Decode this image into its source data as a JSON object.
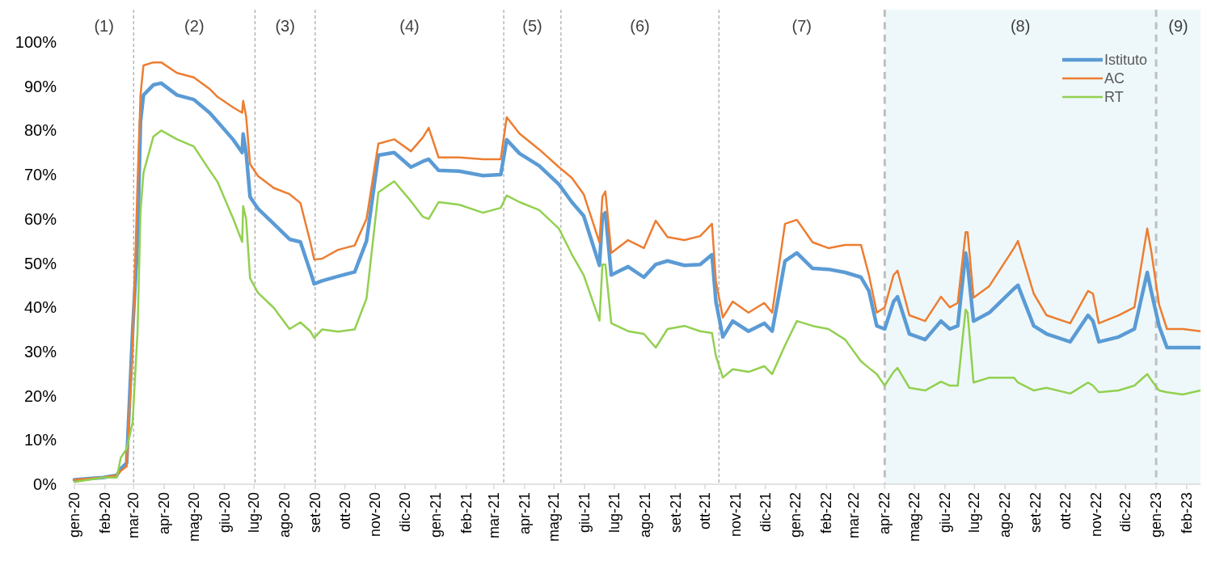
{
  "chart_data": {
    "type": "line",
    "x": [
      "2020-01-01",
      "2020-01-30",
      "2020-02-13",
      "2020-02-17",
      "2020-02-23",
      "2020-02-29",
      "2020-03-05",
      "2020-03-08",
      "2020-03-11",
      "2020-03-21",
      "2020-03-29",
      "2020-04-14",
      "2020-05-01",
      "2020-05-17",
      "2020-05-25",
      "2020-06-10",
      "2020-06-19",
      "2020-06-20",
      "2020-06-23",
      "2020-06-27",
      "2020-07-05",
      "2020-07-21",
      "2020-08-06",
      "2020-08-17",
      "2020-08-27",
      "2020-08-31",
      "2020-09-08",
      "2020-09-24",
      "2020-10-11",
      "2020-10-23",
      "2020-11-04",
      "2020-11-20",
      "2020-12-07",
      "2020-12-19",
      "2020-12-25",
      "2021-01-04",
      "2021-01-25",
      "2021-02-18",
      "2021-03-08",
      "2021-03-14",
      "2021-03-27",
      "2021-04-16",
      "2021-05-06",
      "2021-05-19",
      "2021-05-31",
      "2021-06-16",
      "2021-06-19",
      "2021-06-22",
      "2021-06-28",
      "2021-07-15",
      "2021-07-31",
      "2021-08-12",
      "2021-08-24",
      "2021-09-10",
      "2021-09-26",
      "2021-10-08",
      "2021-10-12",
      "2021-10-19",
      "2021-10-29",
      "2021-11-14",
      "2021-11-30",
      "2021-12-08",
      "2021-12-21",
      "2022-01-02",
      "2022-01-18",
      "2022-02-03",
      "2022-02-20",
      "2022-03-08",
      "2022-03-16",
      "2022-03-24",
      "2022-04-01",
      "2022-04-10",
      "2022-04-14",
      "2022-04-26",
      "2022-05-12",
      "2022-05-28",
      "2022-06-06",
      "2022-06-14",
      "2022-06-22",
      "2022-06-24",
      "2022-06-30",
      "2022-07-16",
      "2022-08-10",
      "2022-08-14",
      "2022-08-30",
      "2022-09-12",
      "2022-10-06",
      "2022-10-24",
      "2022-10-29",
      "2022-11-04",
      "2022-11-24",
      "2022-12-10",
      "2022-12-23",
      "2022-12-27",
      "2023-01-04",
      "2023-01-12",
      "2023-01-28",
      "2023-02-15"
    ],
    "series": [
      {
        "name": "Istituto",
        "color": "#5b9bd5",
        "values": [
          1,
          1.5,
          2,
          3.5,
          4.8,
          34.6,
          55,
          82,
          88,
          90.3,
          90.7,
          88,
          87,
          84,
          82,
          77.9,
          75,
          79.2,
          75,
          65,
          62.3,
          58.9,
          55.4,
          54.8,
          48.1,
          45.3,
          46,
          47,
          48,
          55,
          74.4,
          75,
          71.7,
          73,
          73.5,
          71,
          70.8,
          69.8,
          70,
          77.9,
          74.8,
          72,
          67.8,
          63.8,
          60.7,
          49.5,
          60.7,
          61.4,
          47.3,
          49.2,
          46.8,
          49.7,
          50.5,
          49.5,
          49.7,
          51.9,
          41.3,
          33.3,
          36.9,
          34.6,
          36.4,
          34.6,
          50.5,
          52.3,
          48.8,
          48.6,
          47.9,
          46.8,
          43.7,
          35.8,
          35.1,
          41.3,
          42.4,
          34,
          32.7,
          36.9,
          35.1,
          35.8,
          52.3,
          49.7,
          36.9,
          38.8,
          44.2,
          45,
          35.8,
          34,
          32.2,
          38.2,
          36.9,
          32.2,
          33.3,
          35.1,
          47.9,
          43.7,
          35.8,
          30.9,
          30.9,
          30.9
        ]
      },
      {
        "name": "AC",
        "color": "#ed7d31",
        "values": [
          1,
          1.5,
          2,
          3,
          4,
          31,
          68,
          88,
          94.7,
          95.4,
          95.4,
          93,
          92,
          89.4,
          87.6,
          85.2,
          84,
          86.7,
          83.2,
          72.4,
          69.7,
          67,
          65.6,
          63.6,
          54.8,
          50.8,
          51,
          53,
          54,
          60,
          77,
          78,
          75.3,
          78.4,
          80.6,
          73.9,
          73.9,
          73.5,
          73.5,
          83,
          79.3,
          75.7,
          71.7,
          69.3,
          65.6,
          54.7,
          65,
          66.2,
          52.3,
          55.2,
          53.4,
          59.6,
          55.9,
          55.2,
          56.1,
          58.9,
          46,
          37.7,
          41.3,
          38.8,
          41,
          38.8,
          58.9,
          59.8,
          54.7,
          53.4,
          54.1,
          54.1,
          47.3,
          38.8,
          40,
          47.3,
          48.3,
          38.2,
          36.9,
          42.4,
          40,
          41,
          57,
          57,
          42.2,
          44.8,
          53.4,
          55,
          43.1,
          38.2,
          36.4,
          43.7,
          43.1,
          36.4,
          38.2,
          40,
          57.8,
          52.8,
          40.6,
          35.1,
          35.1,
          34.6
        ]
      },
      {
        "name": "RT",
        "color": "#92d050",
        "values": [
          0.5,
          1.5,
          1.5,
          6,
          8,
          14,
          34.6,
          61.6,
          70.4,
          78.6,
          80,
          78,
          76.4,
          71,
          68.4,
          60,
          54.8,
          62.9,
          60,
          46.6,
          43.3,
          39.9,
          35.1,
          36.6,
          34.6,
          33.1,
          35,
          34.5,
          35,
          42,
          66,
          68.5,
          64,
          60.5,
          60,
          63.8,
          63.2,
          61.4,
          62.5,
          65.3,
          63.8,
          62,
          57.8,
          52,
          47.3,
          37,
          49.7,
          49.7,
          36.4,
          34.6,
          34,
          30.9,
          35.1,
          35.8,
          34.6,
          34.2,
          29,
          24.1,
          26,
          25.4,
          26.7,
          24.9,
          31.4,
          36.9,
          35.8,
          35.1,
          32.7,
          27.8,
          26.3,
          24.9,
          22.3,
          25.4,
          26.3,
          21.8,
          21.2,
          23.2,
          22.3,
          22.3,
          39.5,
          38.8,
          23,
          24.1,
          24.1,
          23,
          21.2,
          21.8,
          20.5,
          23,
          22.3,
          20.8,
          21.2,
          22.3,
          24.9,
          23.6,
          21.2,
          20.8,
          20.3,
          21.2
        ]
      }
    ],
    "xlim": [
      "2020-01-01",
      "2023-02-15"
    ],
    "xticks": [
      {
        "value": "2020-01-01",
        "label": "gen-20"
      },
      {
        "value": "2020-02-01",
        "label": "feb-20"
      },
      {
        "value": "2020-03-01",
        "label": "mar-20"
      },
      {
        "value": "2020-04-01",
        "label": "apr-20"
      },
      {
        "value": "2020-05-01",
        "label": "mag-20"
      },
      {
        "value": "2020-06-01",
        "label": "giu-20"
      },
      {
        "value": "2020-07-01",
        "label": "lug-20"
      },
      {
        "value": "2020-08-01",
        "label": "ago-20"
      },
      {
        "value": "2020-09-01",
        "label": "set-20"
      },
      {
        "value": "2020-10-01",
        "label": "ott-20"
      },
      {
        "value": "2020-11-01",
        "label": "nov-20"
      },
      {
        "value": "2020-12-01",
        "label": "dic-20"
      },
      {
        "value": "2021-01-01",
        "label": "gen-21"
      },
      {
        "value": "2021-02-01",
        "label": "feb-21"
      },
      {
        "value": "2021-03-01",
        "label": "mar-21"
      },
      {
        "value": "2021-04-01",
        "label": "apr-21"
      },
      {
        "value": "2021-05-01",
        "label": "mag-21"
      },
      {
        "value": "2021-06-01",
        "label": "giu-21"
      },
      {
        "value": "2021-07-01",
        "label": "lug-21"
      },
      {
        "value": "2021-08-01",
        "label": "ago-21"
      },
      {
        "value": "2021-09-01",
        "label": "set-21"
      },
      {
        "value": "2021-10-01",
        "label": "ott-21"
      },
      {
        "value": "2021-11-01",
        "label": "nov-21"
      },
      {
        "value": "2021-12-01",
        "label": "dic-21"
      },
      {
        "value": "2022-01-01",
        "label": "gen-22"
      },
      {
        "value": "2022-02-01",
        "label": "feb-22"
      },
      {
        "value": "2022-03-01",
        "label": "mar-22"
      },
      {
        "value": "2022-04-01",
        "label": "apr-22"
      },
      {
        "value": "2022-05-01",
        "label": "mag-22"
      },
      {
        "value": "2022-06-01",
        "label": "giu-22"
      },
      {
        "value": "2022-07-01",
        "label": "lug-22"
      },
      {
        "value": "2022-08-01",
        "label": "ago-22"
      },
      {
        "value": "2022-09-01",
        "label": "set-22"
      },
      {
        "value": "2022-10-01",
        "label": "ott-22"
      },
      {
        "value": "2022-11-01",
        "label": "nov-22"
      },
      {
        "value": "2022-12-01",
        "label": "dic-22"
      },
      {
        "value": "2023-01-01",
        "label": "gen-23"
      },
      {
        "value": "2023-02-01",
        "label": "feb-23"
      }
    ],
    "ylim": [
      0,
      100
    ],
    "yticks": [
      {
        "value": 0,
        "label": "0%"
      },
      {
        "value": 10,
        "label": "10%"
      },
      {
        "value": 20,
        "label": "20%"
      },
      {
        "value": 30,
        "label": "30%"
      },
      {
        "value": 40,
        "label": "40%"
      },
      {
        "value": 50,
        "label": "50%"
      },
      {
        "value": 60,
        "label": "60%"
      },
      {
        "value": 70,
        "label": "70%"
      },
      {
        "value": 80,
        "label": "80%"
      },
      {
        "value": 90,
        "label": "90%"
      },
      {
        "value": 100,
        "label": "100%"
      }
    ],
    "bands": [
      {
        "axis": "x",
        "from": "2022-04-01",
        "to": "2023-02-15",
        "color": "#eef8fa"
      }
    ],
    "annotations": [
      "(1)",
      "(2)",
      "(3)",
      "(4)",
      "(5)",
      "(6)",
      "(7)",
      "(8)",
      "(9)"
    ],
    "ref_lines": [
      {
        "axis": "x",
        "value": "2020-03-01",
        "color": "#a6a6a6",
        "line_style": "dashed"
      },
      {
        "axis": "x",
        "value": "2020-07-02",
        "color": "#a6a6a6",
        "line_style": "dashed"
      },
      {
        "axis": "x",
        "value": "2020-09-01",
        "color": "#a6a6a6",
        "line_style": "dashed"
      },
      {
        "axis": "x",
        "value": "2021-03-11",
        "color": "#a6a6a6",
        "line_style": "dashed"
      },
      {
        "axis": "x",
        "value": "2021-05-08",
        "color": "#a6a6a6",
        "line_style": "dashed"
      },
      {
        "axis": "x",
        "value": "2021-10-15",
        "color": "#a6a6a6",
        "line_style": "dashed"
      },
      {
        "axis": "x",
        "value": "2022-04-01",
        "color": "#bfbfbf",
        "line_style": "dashed"
      },
      {
        "axis": "x",
        "value": "2023-01-01",
        "color": "#bfbfbf",
        "line_style": "dashed"
      }
    ],
    "legend": "top right",
    "grid": false,
    "marker": "none",
    "line_style": "solid"
  }
}
